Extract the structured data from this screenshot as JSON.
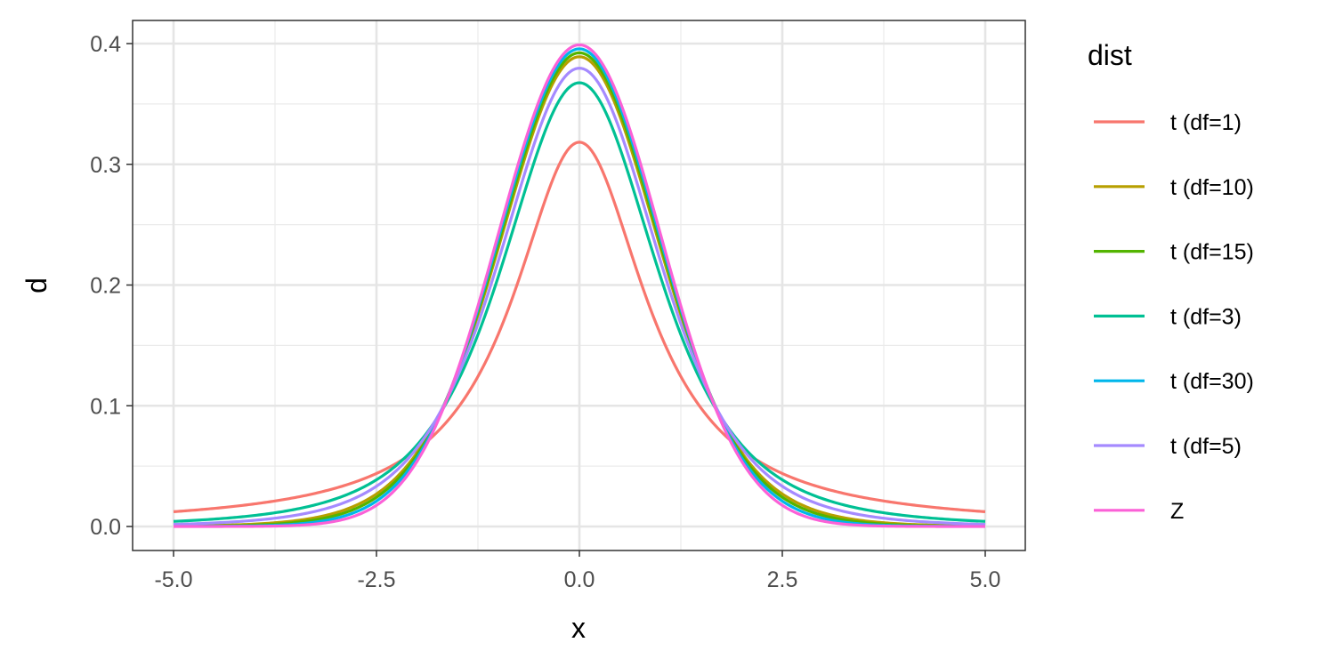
{
  "chart_data": {
    "type": "line",
    "xlabel": "x",
    "ylabel": "d",
    "xlim": [
      -5.0,
      5.0
    ],
    "ylim": [
      0.0,
      0.4
    ],
    "x_ticks": [
      "-5.0",
      "-2.5",
      "0.0",
      "2.5",
      "5.0"
    ],
    "y_ticks": [
      "0.0",
      "0.1",
      "0.2",
      "0.3",
      "0.4"
    ],
    "grid": true,
    "legend_title": "dist",
    "legend_position": "right",
    "series": [
      {
        "name": "t (df=1)",
        "df": 1,
        "color": "#F8766D"
      },
      {
        "name": "t (df=10)",
        "df": 10,
        "color": "#B79F00"
      },
      {
        "name": "t (df=15)",
        "df": 15,
        "color": "#53B400"
      },
      {
        "name": "t (df=3)",
        "df": 3,
        "color": "#00C094"
      },
      {
        "name": "t (df=30)",
        "df": 30,
        "color": "#00B6EB"
      },
      {
        "name": "t (df=5)",
        "df": 5,
        "color": "#A58AFF"
      },
      {
        "name": "Z",
        "df": null,
        "color": "#FB61D7"
      }
    ],
    "peak_values": {
      "t (df=1)": 0.318,
      "t (df=3)": 0.368,
      "t (df=5)": 0.38,
      "t (df=10)": 0.389,
      "t (df=15)": 0.392,
      "t (df=30)": 0.396,
      "Z": 0.399
    }
  }
}
